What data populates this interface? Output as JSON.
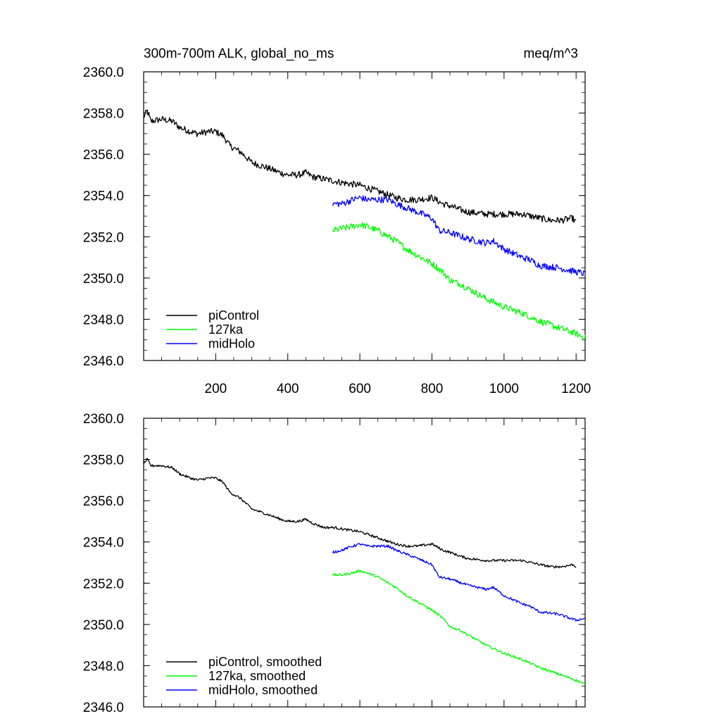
{
  "figure": {
    "title_left": "300m-700m ALK, global_no_ms",
    "title_right": "meq/m^3"
  },
  "chart_data": [
    {
      "type": "line",
      "panel": "top",
      "title": "300m-700m ALK, global_no_ms",
      "units": "meq/m^3",
      "xlabel": "",
      "ylabel": "",
      "xlim": [
        0,
        1225
      ],
      "ylim": [
        2346.0,
        2360.0
      ],
      "xticks": [
        200,
        400,
        600,
        800,
        1000,
        1200
      ],
      "yticks": [
        2346.0,
        2348.0,
        2350.0,
        2352.0,
        2354.0,
        2356.0,
        2358.0,
        2360.0
      ],
      "ytick_labels": [
        "2346.0",
        "2348.0",
        "2350.0",
        "2352.0",
        "2354.0",
        "2356.0",
        "2358.0",
        "2360.0"
      ],
      "show_xtick_labels": true,
      "legend_position": "bottom-left",
      "noise": 0.16,
      "series": [
        {
          "name": "piControl",
          "color": "#000000",
          "x": [
            0,
            10,
            20,
            50,
            80,
            100,
            130,
            150,
            180,
            200,
            220,
            240,
            270,
            300,
            350,
            380,
            400,
            430,
            450,
            470,
            500,
            530,
            560,
            600,
            650,
            700,
            730,
            760,
            800,
            830,
            850,
            880,
            900,
            950,
            1000,
            1050,
            1100,
            1130,
            1160,
            1190,
            1200
          ],
          "y": [
            2357.8,
            2358.1,
            2357.6,
            2357.7,
            2357.6,
            2357.3,
            2357.1,
            2357.0,
            2357.1,
            2357.1,
            2356.9,
            2356.4,
            2356.1,
            2355.6,
            2355.3,
            2355.1,
            2355.0,
            2355.0,
            2355.1,
            2354.9,
            2354.8,
            2354.7,
            2354.6,
            2354.5,
            2354.2,
            2353.9,
            2353.8,
            2353.8,
            2353.9,
            2353.6,
            2353.5,
            2353.3,
            2353.2,
            2353.1,
            2353.1,
            2353.1,
            2352.9,
            2352.8,
            2352.8,
            2352.9,
            2352.7
          ]
        },
        {
          "name": "127ka",
          "color": "#00ff00",
          "x": [
            525,
            550,
            580,
            600,
            620,
            650,
            680,
            700,
            730,
            760,
            800,
            830,
            850,
            880,
            900,
            950,
            1000,
            1050,
            1100,
            1150,
            1200,
            1225
          ],
          "y": [
            2352.3,
            2352.4,
            2352.5,
            2352.6,
            2352.5,
            2352.3,
            2352.0,
            2351.8,
            2351.4,
            2351.1,
            2350.7,
            2350.3,
            2349.9,
            2349.7,
            2349.5,
            2349.0,
            2348.6,
            2348.3,
            2347.9,
            2347.6,
            2347.3,
            2347.1
          ]
        },
        {
          "name": "midHolo",
          "color": "#0000ff",
          "x": [
            525,
            550,
            580,
            600,
            620,
            650,
            680,
            700,
            730,
            760,
            800,
            820,
            850,
            900,
            950,
            970,
            1000,
            1050,
            1070,
            1100,
            1150,
            1200,
            1225
          ],
          "y": [
            2353.6,
            2353.6,
            2353.8,
            2353.9,
            2353.8,
            2353.8,
            2353.8,
            2353.6,
            2353.4,
            2353.2,
            2352.9,
            2352.3,
            2352.2,
            2351.9,
            2351.7,
            2351.8,
            2351.4,
            2351.0,
            2350.9,
            2350.6,
            2350.5,
            2350.3,
            2350.2
          ]
        }
      ]
    },
    {
      "type": "line",
      "panel": "bottom",
      "xlabel": "",
      "ylabel": "",
      "xlim": [
        0,
        1225
      ],
      "ylim": [
        2346.0,
        2360.0
      ],
      "xticks": [
        200,
        400,
        600,
        800,
        1000,
        1200
      ],
      "yticks": [
        2346.0,
        2348.0,
        2350.0,
        2352.0,
        2354.0,
        2356.0,
        2358.0,
        2360.0
      ],
      "ytick_labels": [
        "2346.0",
        "2348.0",
        "2350.0",
        "2352.0",
        "2354.0",
        "2356.0",
        "2358.0",
        "2360.0"
      ],
      "show_xtick_labels": false,
      "legend_position": "bottom-left",
      "noise": 0.06,
      "series": [
        {
          "name": "piControl, smoothed",
          "color": "#000000",
          "x": [
            0,
            10,
            20,
            50,
            80,
            100,
            130,
            150,
            180,
            200,
            220,
            240,
            270,
            300,
            350,
            380,
            400,
            430,
            450,
            470,
            500,
            530,
            560,
            600,
            650,
            700,
            730,
            760,
            800,
            830,
            850,
            880,
            900,
            950,
            1000,
            1050,
            1100,
            1130,
            1160,
            1190,
            1200
          ],
          "y": [
            2357.8,
            2358.0,
            2357.7,
            2357.7,
            2357.6,
            2357.3,
            2357.1,
            2357.0,
            2357.1,
            2357.1,
            2356.9,
            2356.4,
            2356.1,
            2355.6,
            2355.3,
            2355.1,
            2355.0,
            2355.0,
            2355.1,
            2354.9,
            2354.7,
            2354.7,
            2354.6,
            2354.5,
            2354.2,
            2353.9,
            2353.8,
            2353.8,
            2353.9,
            2353.6,
            2353.5,
            2353.3,
            2353.2,
            2353.1,
            2353.1,
            2353.1,
            2352.9,
            2352.8,
            2352.8,
            2352.9,
            2352.8
          ]
        },
        {
          "name": "127ka, smoothed",
          "color": "#00ff00",
          "x": [
            525,
            550,
            580,
            600,
            620,
            650,
            680,
            700,
            730,
            760,
            800,
            830,
            850,
            880,
            900,
            950,
            1000,
            1050,
            1100,
            1150,
            1200,
            1225
          ],
          "y": [
            2352.4,
            2352.4,
            2352.5,
            2352.6,
            2352.5,
            2352.3,
            2352.0,
            2351.8,
            2351.4,
            2351.1,
            2350.7,
            2350.3,
            2349.9,
            2349.7,
            2349.5,
            2349.0,
            2348.6,
            2348.3,
            2347.9,
            2347.6,
            2347.3,
            2347.1
          ]
        },
        {
          "name": "midHolo, smoothed",
          "color": "#0000ff",
          "x": [
            525,
            550,
            580,
            600,
            620,
            650,
            680,
            700,
            730,
            760,
            800,
            820,
            850,
            900,
            950,
            970,
            1000,
            1050,
            1070,
            1100,
            1150,
            1200,
            1225
          ],
          "y": [
            2353.5,
            2353.6,
            2353.8,
            2353.9,
            2353.8,
            2353.8,
            2353.8,
            2353.6,
            2353.4,
            2353.2,
            2352.9,
            2352.3,
            2352.2,
            2351.9,
            2351.7,
            2351.8,
            2351.4,
            2351.0,
            2350.9,
            2350.6,
            2350.5,
            2350.2,
            2350.3
          ]
        }
      ]
    }
  ]
}
